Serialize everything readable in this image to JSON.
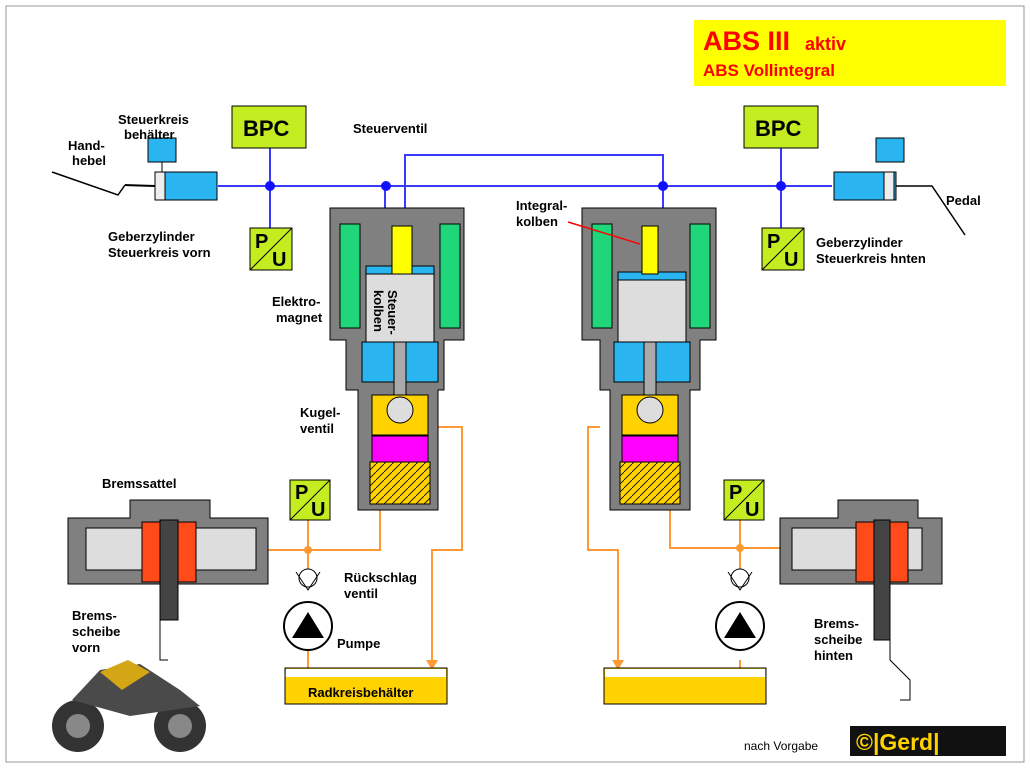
{
  "title": {
    "main": "ABS III",
    "status": "aktiv",
    "sub": "ABS Vollintegral"
  },
  "labels": {
    "steuerkreis1": "Steuerkreis",
    "steuerkreis2": "behälter",
    "handhebel1": "Hand-",
    "handhebel2": "hebel",
    "bpc": "BPC",
    "steuerventil": "Steuerventil",
    "gzv1": "Geberzylinder",
    "gzv2": "Steuerkreis vorn",
    "gzh1": "Geberzylinder",
    "gzh2": "Steuerkreis hnten",
    "pedal": "Pedal",
    "integral1": "Integral-",
    "integral2": "kolben",
    "elektro1": "Elektro-",
    "elektro2": "magnet",
    "steuerkolben1": "Steuer-",
    "steuerkolben2": "kolben",
    "kugel1": "Kugel-",
    "kugel2": "ventil",
    "bremssattel": "Bremssattel",
    "rueck1": "Rückschlag",
    "rueck2": "ventil",
    "pumpe": "Pumpe",
    "radkreis": "Radkreisbehälter",
    "bvorn1": "Brems-",
    "bvorn2": "scheibe",
    "bvorn3": "vorn",
    "bhinten1": "Brems-",
    "bhinten2": "scheibe",
    "bhinten3": "hinten",
    "p": "P",
    "u": "U",
    "credit": "nach Vorgabe",
    "logo": "©|Gerd|"
  }
}
